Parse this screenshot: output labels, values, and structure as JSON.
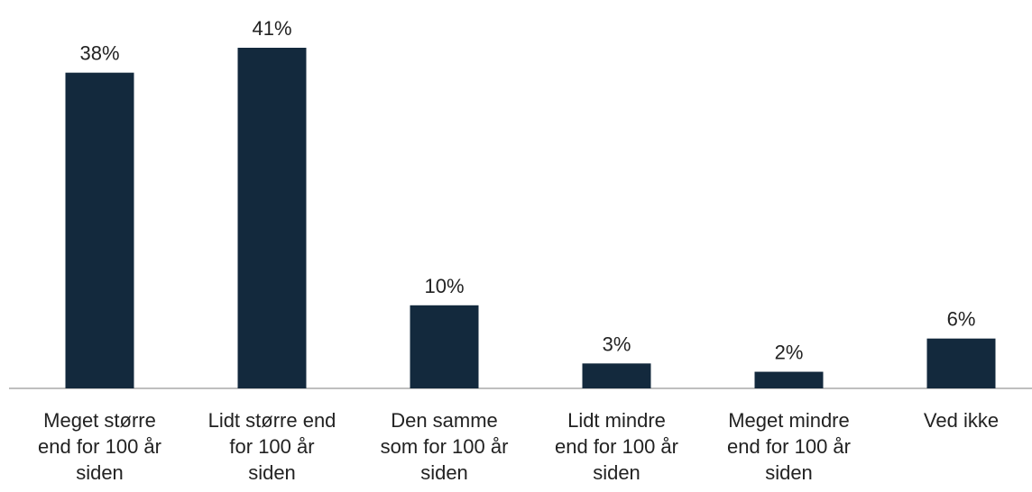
{
  "chart_data": {
    "type": "bar",
    "categories": [
      "Meget større\nend for 100 år\nsiden",
      "Lidt større end\nfor 100 år\nsiden",
      "Den samme\nsom for 100 år\nsiden",
      "Lidt mindre\nend for 100 år\nsiden",
      "Meget mindre\nend for 100 år\nsiden",
      "Ved ikke"
    ],
    "values": [
      38,
      41,
      10,
      3,
      2,
      6
    ],
    "value_labels": [
      "38%",
      "41%",
      "10%",
      "3%",
      "2%",
      "6%"
    ],
    "color": "#13293d"
  }
}
